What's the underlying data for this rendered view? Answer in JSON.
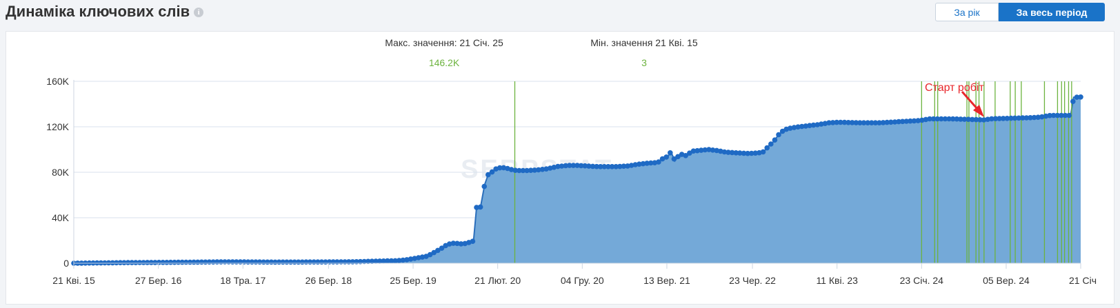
{
  "header": {
    "title": "Динаміка ключових слів",
    "info_icon": "info-icon",
    "btn_year": "За рік",
    "btn_all": "За весь період"
  },
  "stats": {
    "max_label": "Макс. значення: 21 Січ. 25",
    "max_value": "146.2K",
    "min_label": "Мін. значення 21 Кві. 15",
    "min_value": "3"
  },
  "annotation": {
    "text": "Старт робіт",
    "color": "#e8262b"
  },
  "watermark": "SERPSTAT",
  "colors": {
    "area": "#74a9d8",
    "line": "#2a6ebb",
    "marker": "#1f6ac4",
    "grid": "#d9e2ee",
    "event_line": "#6cb33e",
    "accent": "#1a73c8"
  },
  "chart_data": {
    "type": "area",
    "ylim": [
      0,
      160000
    ],
    "y_ticks": [
      {
        "v": 0,
        "label": "0"
      },
      {
        "v": 40000,
        "label": "40K"
      },
      {
        "v": 80000,
        "label": "80K"
      },
      {
        "v": 120000,
        "label": "120K"
      },
      {
        "v": 160000,
        "label": "160K"
      }
    ],
    "x_ticks": [
      {
        "t": 0.0,
        "label": "21 Кві. 15"
      },
      {
        "t": 0.084,
        "label": "27 Бер. 16"
      },
      {
        "t": 0.168,
        "label": "18 Тра. 17"
      },
      {
        "t": 0.253,
        "label": "26 Бер. 18"
      },
      {
        "t": 0.337,
        "label": "25 Бер. 19"
      },
      {
        "t": 0.421,
        "label": "21 Лют. 20"
      },
      {
        "t": 0.505,
        "label": "04 Гру. 20"
      },
      {
        "t": 0.589,
        "label": "13 Вер. 21"
      },
      {
        "t": 0.674,
        "label": "23 Чер. 22"
      },
      {
        "t": 0.758,
        "label": "11 Кві. 23"
      },
      {
        "t": 0.842,
        "label": "23 Січ. 24"
      },
      {
        "t": 0.926,
        "label": "05 Вер. 24"
      },
      {
        "t": 1.0,
        "label": "21 Січ"
      }
    ],
    "event_lines_t": [
      0.438,
      0.842,
      0.855,
      0.858,
      0.887,
      0.889,
      0.896,
      0.899,
      0.904,
      0.915,
      0.93,
      0.935,
      0.941,
      0.964,
      0.977,
      0.981,
      0.984,
      0.988,
      0.991
    ],
    "series": [
      {
        "points": [
          [
            0.0,
            3
          ],
          [
            0.05,
            500
          ],
          [
            0.1,
            800
          ],
          [
            0.15,
            1200
          ],
          [
            0.2,
            1000
          ],
          [
            0.25,
            1100
          ],
          [
            0.28,
            1300
          ],
          [
            0.3,
            1800
          ],
          [
            0.32,
            2200
          ],
          [
            0.33,
            3000
          ],
          [
            0.34,
            4500
          ],
          [
            0.35,
            6000
          ],
          [
            0.355,
            8000
          ],
          [
            0.36,
            10500
          ],
          [
            0.365,
            13000
          ],
          [
            0.37,
            16000
          ],
          [
            0.375,
            17500
          ],
          [
            0.38,
            17500
          ],
          [
            0.385,
            17000
          ],
          [
            0.39,
            17500
          ],
          [
            0.393,
            18500
          ],
          [
            0.397,
            19500
          ],
          [
            0.4,
            49000
          ],
          [
            0.404,
            49500
          ],
          [
            0.408,
            69000
          ],
          [
            0.412,
            79000
          ],
          [
            0.416,
            80500
          ],
          [
            0.42,
            83500
          ],
          [
            0.424,
            84000
          ],
          [
            0.428,
            84000
          ],
          [
            0.432,
            83000
          ],
          [
            0.436,
            82000
          ],
          [
            0.44,
            81500
          ],
          [
            0.45,
            81500
          ],
          [
            0.46,
            82000
          ],
          [
            0.47,
            83000
          ],
          [
            0.48,
            85000
          ],
          [
            0.49,
            86000
          ],
          [
            0.5,
            86000
          ],
          [
            0.51,
            85500
          ],
          [
            0.52,
            85000
          ],
          [
            0.53,
            85000
          ],
          [
            0.54,
            85000
          ],
          [
            0.55,
            85500
          ],
          [
            0.56,
            87000
          ],
          [
            0.57,
            88000
          ],
          [
            0.58,
            88500
          ],
          [
            0.585,
            92000
          ],
          [
            0.59,
            94000
          ],
          [
            0.593,
            98000
          ],
          [
            0.597,
            90000
          ],
          [
            0.601,
            95000
          ],
          [
            0.605,
            96000
          ],
          [
            0.609,
            94000
          ],
          [
            0.613,
            98500
          ],
          [
            0.62,
            99000
          ],
          [
            0.63,
            100000
          ],
          [
            0.64,
            99000
          ],
          [
            0.645,
            98000
          ],
          [
            0.65,
            97500
          ],
          [
            0.66,
            97000
          ],
          [
            0.67,
            96500
          ],
          [
            0.68,
            97000
          ],
          [
            0.685,
            98000
          ],
          [
            0.69,
            103000
          ],
          [
            0.695,
            107000
          ],
          [
            0.7,
            113000
          ],
          [
            0.705,
            117000
          ],
          [
            0.71,
            118500
          ],
          [
            0.72,
            120000
          ],
          [
            0.73,
            121000
          ],
          [
            0.74,
            122000
          ],
          [
            0.75,
            123500
          ],
          [
            0.76,
            124000
          ],
          [
            0.78,
            123500
          ],
          [
            0.8,
            123500
          ],
          [
            0.82,
            124500
          ],
          [
            0.84,
            125500
          ],
          [
            0.85,
            127000
          ],
          [
            0.87,
            127000
          ],
          [
            0.89,
            126500
          ],
          [
            0.905,
            126000
          ],
          [
            0.91,
            127000
          ],
          [
            0.93,
            127500
          ],
          [
            0.95,
            128000
          ],
          [
            0.96,
            128500
          ],
          [
            0.97,
            130000
          ],
          [
            0.99,
            130000
          ],
          [
            0.993,
            146000
          ],
          [
            0.997,
            146000
          ],
          [
            1.0,
            146200
          ]
        ]
      }
    ]
  }
}
